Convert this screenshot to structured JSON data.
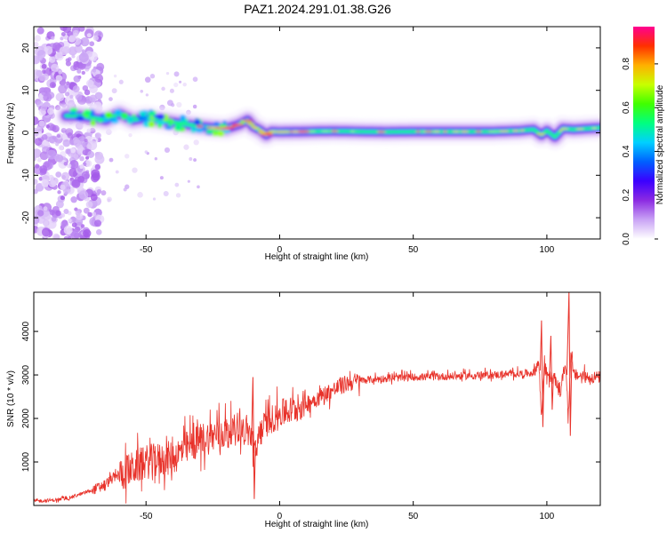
{
  "title": "PAZ1.2024.291.01.38.G26",
  "chart_data": [
    {
      "type": "heatmap",
      "xlabel": "Height of straight line (km)",
      "ylabel": "Frequency (Hz)",
      "xlim": [
        -92,
        120
      ],
      "ylim": [
        -25,
        25
      ],
      "xticks": [
        -50,
        0,
        50,
        100
      ],
      "yticks": [
        -20,
        -10,
        0,
        10,
        20
      ],
      "colorbar": {
        "label": "Normalized spectral amplitude",
        "range": [
          0,
          0.97
        ],
        "ticks": [
          "0.0",
          "0.2",
          "0.4",
          "0.6",
          "0.8"
        ],
        "colors": [
          "#ffffff",
          "#c9a3f5",
          "#8c2be2",
          "#3b00ff",
          "#0060ff",
          "#00d0ff",
          "#00ff80",
          "#40ff00",
          "#c8ff00",
          "#ffb000",
          "#ff3000",
          "#ff0090"
        ]
      },
      "ridge_frequency_hz": {
        "x": [
          -75,
          -70,
          -65,
          -60,
          -55,
          -50,
          -45,
          -40,
          -35,
          -30,
          -25,
          -20,
          -15,
          -12,
          -10,
          -7,
          -5,
          -3,
          0,
          10,
          20,
          30,
          40,
          50,
          60,
          70,
          80,
          90,
          95,
          98,
          100,
          103,
          106,
          110,
          115,
          120
        ],
        "y": [
          4.0,
          3.5,
          3.0,
          4.5,
          3.0,
          3.5,
          3.0,
          2.5,
          2.0,
          1.5,
          1.2,
          1.0,
          2.0,
          3.0,
          1.5,
          0.5,
          -0.5,
          0.3,
          0.2,
          0.3,
          0.4,
          0.3,
          0.2,
          0.3,
          0.3,
          0.3,
          0.3,
          0.5,
          0.8,
          -0.5,
          0.5,
          -1.0,
          1.0,
          0.8,
          1.0,
          1.2
        ]
      }
    },
    {
      "type": "line",
      "xlabel": "Height of straight line (km)",
      "ylabel": "SNR (10 * v/v)",
      "xlim": [
        -92,
        120
      ],
      "ylim": [
        0,
        4900
      ],
      "xticks": [
        -50,
        0,
        50,
        100
      ],
      "yticks": [
        1000,
        2000,
        3000,
        4000
      ],
      "color": "#e8322a",
      "series": [
        {
          "x": [
            -92,
            -85,
            -80,
            -75,
            -70,
            -65,
            -62,
            -60,
            -55,
            -50,
            -45,
            -40,
            -35,
            -30,
            -25,
            -20,
            -15,
            -12,
            -10,
            -9,
            -8,
            -5,
            0,
            5,
            10,
            15,
            20,
            25,
            30,
            35,
            40,
            50,
            60,
            70,
            80,
            90,
            95,
            97,
            98,
            99,
            100,
            103,
            105,
            107,
            108,
            109,
            110,
            115,
            120
          ],
          "y": [
            100,
            120,
            150,
            250,
            350,
            500,
            650,
            700,
            850,
            1000,
            1050,
            1100,
            1300,
            1500,
            1600,
            1700,
            1800,
            1700,
            1500,
            1100,
            1600,
            1900,
            2100,
            2200,
            2350,
            2500,
            2650,
            2800,
            2870,
            2900,
            2920,
            2950,
            2960,
            2980,
            3000,
            3030,
            3050,
            3300,
            2000,
            3300,
            3000,
            2900,
            2600,
            3300,
            2000,
            3500,
            3000,
            2950,
            2950
          ]
        }
      ]
    }
  ]
}
